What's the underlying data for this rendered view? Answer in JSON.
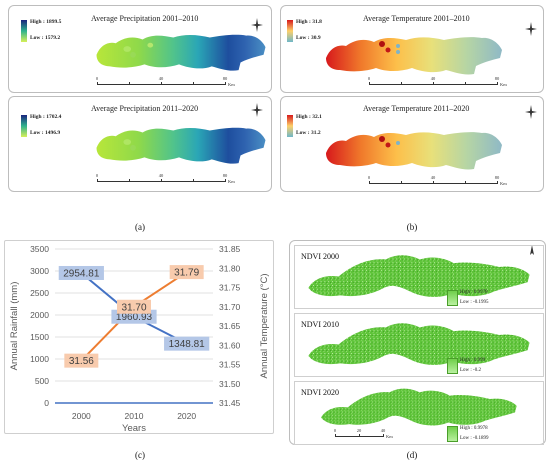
{
  "panel_a": {
    "top_map": {
      "title": "Average Precipitation 2001–2010",
      "legend_high": "High : 1899.5",
      "legend_low": "Low : 1579.2"
    },
    "bottom_map": {
      "title": "Average Precipitation 2011–2020",
      "legend_high": "High : 1702.4",
      "legend_low": "Low : 1496.9"
    },
    "scale": [
      "0",
      "40",
      "80"
    ],
    "scale_unit": "Km",
    "label": "(a)"
  },
  "panel_b": {
    "top_map": {
      "title": "Average Temperature 2001–2010",
      "legend_high": "High : 31.8",
      "legend_low": "Low : 30.9"
    },
    "bottom_map": {
      "title": "Average Temperature 2011–2020",
      "legend_high": "High : 32.1",
      "legend_low": "Low : 31.2"
    },
    "scale": [
      "0",
      "40",
      "80"
    ],
    "scale_unit": "Km",
    "label": "(b)"
  },
  "panel_c": {
    "label": "(c)",
    "chart_data": {
      "type": "line",
      "categories": [
        "2000",
        "2010",
        "2020"
      ],
      "xlabel": "Years",
      "ylabel": "Annual Rainfall (mm)",
      "y2label": "Annual Temperature (°C)",
      "ylim": [
        0,
        3500
      ],
      "yticks": [
        "0",
        "500",
        "1000",
        "1500",
        "2000",
        "2500",
        "3000",
        "3500"
      ],
      "y2lim": [
        31.45,
        31.85
      ],
      "y2ticks": [
        "31.45",
        "31.50",
        "31.55",
        "31.60",
        "31.65",
        "31.70",
        "31.75",
        "31.80",
        "31.85"
      ],
      "series": [
        {
          "values": [
            2954.81,
            1960.93,
            1348.81
          ],
          "labels": [
            "2954.81",
            "1960.93",
            "1348.81"
          ],
          "color": "#4472c4",
          "label_bg": "#b4c7e7",
          "axis": "left"
        },
        {
          "values": [
            31.56,
            31.7,
            31.79
          ],
          "labels": [
            "31.56",
            "31.70",
            "31.79"
          ],
          "color": "#ed7d31",
          "label_bg": "#f8cbad",
          "axis": "right"
        },
        {
          "values": [
            0,
            0,
            0
          ],
          "color": "#4472c4",
          "axis": "left"
        }
      ],
      "grid": true
    }
  },
  "panel_d": {
    "maps": [
      {
        "title": "NDVI 2000",
        "high": "High : 0.9978",
        "low": "Low : -0.1995"
      },
      {
        "title": "NDVI 2010",
        "high": "High : 0.999",
        "low": "Low : -0.2"
      },
      {
        "title": "NDVI 2020",
        "high": "High : 0.9978",
        "low": "Low : -0.1899"
      }
    ],
    "scale": [
      "0",
      "20",
      "40"
    ],
    "scale_unit": "Km",
    "label": "(d)"
  }
}
